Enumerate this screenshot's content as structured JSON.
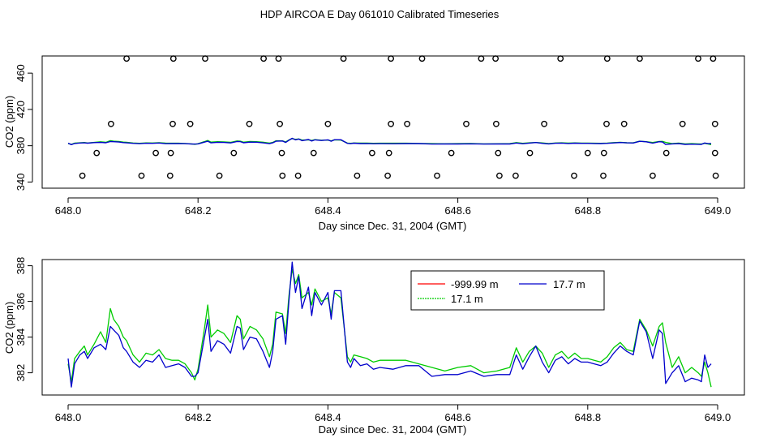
{
  "figure_title": "HDP AIRCOA E  Day 061010  Calibrated Timeseries",
  "chart_data": [
    {
      "type": "scatter",
      "title": "",
      "xlabel": "Day since Dec. 31, 2004 (GMT)",
      "ylabel": "CO2 (ppm)",
      "xlim": [
        648.0,
        649.0
      ],
      "ylim": [
        335,
        478
      ],
      "xticks": [
        648.0,
        648.2,
        648.4,
        648.6,
        648.8,
        649.0
      ],
      "xtick_labels": [
        "648.0",
        "648.2",
        "648.4",
        "648.6",
        "648.8",
        "649.0"
      ],
      "yticks": [
        340,
        380,
        420,
        460
      ],
      "ytick_labels": [
        "340",
        "380",
        "420",
        "460"
      ],
      "grid": false,
      "calibration_points": {
        "x": [
          648.09,
          648.162,
          648.211,
          648.301,
          648.324,
          648.424,
          648.497,
          648.545,
          648.636,
          648.658,
          648.758,
          648.83,
          648.88,
          648.97,
          648.993,
          648.066,
          648.161,
          648.188,
          648.279,
          648.326,
          648.4,
          648.497,
          648.522,
          648.613,
          648.659,
          648.733,
          648.829,
          648.856,
          648.946,
          648.996,
          648.044,
          648.135,
          648.158,
          648.255,
          648.329,
          648.378,
          648.468,
          648.494,
          648.59,
          648.662,
          648.711,
          648.8,
          648.825,
          648.921,
          648.996,
          648.022,
          648.113,
          648.157,
          648.233,
          648.33,
          648.354,
          648.445,
          648.492,
          648.568,
          648.664,
          648.689,
          648.779,
          648.824,
          648.9,
          648.997
        ],
        "y": [
          476,
          476,
          476,
          476,
          476,
          476,
          476,
          476,
          476,
          476,
          476,
          476,
          476,
          476,
          476,
          404,
          404,
          404,
          404,
          404,
          404,
          404,
          404,
          404,
          404,
          404,
          404,
          404,
          404,
          404,
          372,
          372,
          372,
          372,
          372,
          372,
          372,
          372,
          372,
          372,
          372,
          372,
          372,
          372,
          372,
          347,
          347,
          347,
          347,
          347,
          347,
          347,
          347,
          347,
          347,
          347,
          347,
          347,
          347,
          347
        ]
      },
      "series": [
        {
          "name": "",
          "color": "#00cc00",
          "values_ref": "green"
        },
        {
          "name": "",
          "color": "#0000cc",
          "values_ref": "blue"
        }
      ]
    },
    {
      "type": "line",
      "title": "",
      "xlabel": "Day since Dec. 31, 2004 (GMT)",
      "ylabel": "CO2 (ppm)",
      "xlim": [
        648.0,
        649.0
      ],
      "ylim": [
        380.8,
        388.3
      ],
      "xticks": [
        648.0,
        648.2,
        648.4,
        648.6,
        648.8,
        649.0
      ],
      "xtick_labels": [
        "648.0",
        "648.2",
        "648.4",
        "648.6",
        "648.8",
        "649.0"
      ],
      "yticks": [
        382,
        384,
        386,
        388
      ],
      "ytick_labels": [
        "382",
        "384",
        "386",
        "388"
      ],
      "grid": false,
      "legend_position": "top-right",
      "series": [
        {
          "name": "-999.99 m",
          "color": "#ff0000",
          "x": [],
          "values": []
        },
        {
          "name": "17.1 m",
          "color": "#00cc00",
          "x": [
            648.0,
            648.005,
            648.01,
            648.018,
            648.025,
            648.03,
            648.04,
            648.05,
            648.058,
            648.065,
            648.07,
            648.078,
            648.085,
            648.09,
            648.1,
            648.11,
            648.12,
            648.13,
            648.14,
            648.15,
            648.16,
            648.17,
            648.18,
            648.19,
            648.195,
            648.2,
            648.21,
            648.215,
            648.22,
            648.23,
            648.24,
            648.25,
            648.26,
            648.265,
            648.27,
            648.28,
            648.29,
            648.3,
            648.31,
            648.315,
            648.32,
            648.33,
            648.335,
            648.34,
            648.345,
            648.35,
            648.355,
            648.36,
            648.37,
            648.375,
            648.38,
            648.39,
            648.4,
            648.405,
            648.41,
            648.42,
            648.43,
            648.435,
            648.44,
            648.45,
            648.46,
            648.47,
            648.48,
            648.5,
            648.52,
            648.54,
            648.56,
            648.58,
            648.6,
            648.62,
            648.64,
            648.66,
            648.68,
            648.69,
            648.7,
            648.71,
            648.72,
            648.73,
            648.74,
            648.75,
            648.76,
            648.77,
            648.78,
            648.79,
            648.8,
            648.81,
            648.82,
            648.83,
            648.84,
            648.85,
            648.86,
            648.87,
            648.88,
            648.89,
            648.9,
            648.91,
            648.915,
            648.92,
            648.93,
            648.94,
            648.95,
            648.96,
            648.97,
            648.975,
            648.98,
            648.985,
            648.99
          ],
          "values": [
            382.5,
            381.5,
            382.8,
            383.2,
            383.5,
            383.0,
            383.6,
            384.3,
            383.7,
            385.6,
            385.0,
            384.6,
            384.0,
            383.8,
            383.0,
            382.6,
            383.1,
            383.0,
            383.3,
            382.8,
            382.7,
            382.7,
            382.5,
            382.0,
            381.6,
            382.2,
            384.5,
            385.8,
            384.0,
            384.4,
            384.2,
            383.7,
            385.2,
            385.0,
            383.9,
            384.6,
            384.4,
            383.9,
            382.9,
            383.6,
            385.4,
            385.3,
            384.2,
            386.3,
            387.8,
            387.0,
            387.5,
            386.2,
            386.5,
            385.8,
            386.7,
            386.0,
            386.2,
            385.3,
            386.5,
            386.2,
            382.9,
            382.6,
            383.0,
            382.9,
            382.8,
            382.6,
            382.7,
            382.7,
            382.7,
            382.5,
            382.3,
            382.1,
            382.3,
            382.4,
            382.0,
            382.1,
            382.3,
            383.4,
            382.6,
            383.2,
            383.5,
            383.1,
            382.3,
            383.0,
            383.2,
            382.8,
            383.1,
            382.8,
            382.8,
            382.7,
            382.6,
            382.9,
            383.4,
            383.7,
            383.3,
            383.2,
            385.0,
            384.4,
            383.5,
            384.6,
            384.8,
            383.7,
            382.3,
            382.9,
            382.0,
            382.3,
            382.0,
            381.8,
            382.6,
            382.0,
            381.2
          ]
        },
        {
          "name": "17.7 m",
          "color": "#0000cc",
          "x": [
            648.0,
            648.005,
            648.01,
            648.018,
            648.025,
            648.03,
            648.04,
            648.05,
            648.058,
            648.065,
            648.07,
            648.078,
            648.085,
            648.09,
            648.1,
            648.11,
            648.12,
            648.13,
            648.14,
            648.15,
            648.16,
            648.17,
            648.18,
            648.19,
            648.195,
            648.2,
            648.21,
            648.215,
            648.22,
            648.23,
            648.24,
            648.25,
            648.26,
            648.265,
            648.27,
            648.28,
            648.29,
            648.3,
            648.31,
            648.315,
            648.32,
            648.33,
            648.335,
            648.34,
            648.345,
            648.35,
            648.355,
            648.36,
            648.37,
            648.375,
            648.38,
            648.39,
            648.4,
            648.405,
            648.41,
            648.42,
            648.43,
            648.435,
            648.44,
            648.45,
            648.46,
            648.47,
            648.48,
            648.5,
            648.52,
            648.54,
            648.56,
            648.58,
            648.6,
            648.62,
            648.64,
            648.66,
            648.68,
            648.69,
            648.7,
            648.71,
            648.72,
            648.73,
            648.74,
            648.75,
            648.76,
            648.77,
            648.78,
            648.79,
            648.8,
            648.81,
            648.82,
            648.83,
            648.84,
            648.85,
            648.86,
            648.87,
            648.88,
            648.89,
            648.9,
            648.91,
            648.915,
            648.92,
            648.93,
            648.94,
            648.95,
            648.96,
            648.97,
            648.975,
            648.98,
            648.985,
            648.99
          ],
          "values": [
            382.8,
            381.2,
            382.5,
            383.0,
            383.2,
            382.8,
            383.4,
            383.6,
            383.3,
            384.6,
            384.4,
            384.1,
            383.4,
            383.2,
            382.6,
            382.3,
            382.7,
            382.6,
            383.0,
            382.3,
            382.4,
            382.5,
            382.3,
            381.8,
            381.8,
            382.0,
            384.0,
            385.0,
            383.2,
            383.8,
            383.6,
            383.1,
            384.6,
            384.5,
            383.3,
            384.0,
            383.9,
            383.2,
            382.3,
            383.2,
            385.0,
            385.2,
            383.6,
            386.0,
            388.2,
            386.5,
            387.4,
            385.6,
            386.8,
            385.2,
            386.5,
            385.8,
            386.5,
            385.0,
            386.6,
            386.6,
            382.6,
            382.3,
            382.8,
            382.4,
            382.5,
            382.2,
            382.3,
            382.2,
            382.4,
            382.4,
            381.8,
            381.9,
            381.9,
            382.1,
            381.8,
            381.9,
            381.9,
            383.0,
            382.2,
            382.9,
            383.5,
            382.6,
            382.0,
            382.7,
            382.9,
            382.5,
            382.8,
            382.6,
            382.6,
            382.5,
            382.4,
            382.6,
            383.1,
            383.5,
            383.2,
            383.0,
            384.9,
            384.3,
            382.8,
            384.4,
            384.2,
            381.4,
            382.0,
            382.4,
            381.5,
            381.7,
            381.6,
            381.5,
            383.0,
            382.3,
            382.5
          ]
        }
      ]
    }
  ]
}
